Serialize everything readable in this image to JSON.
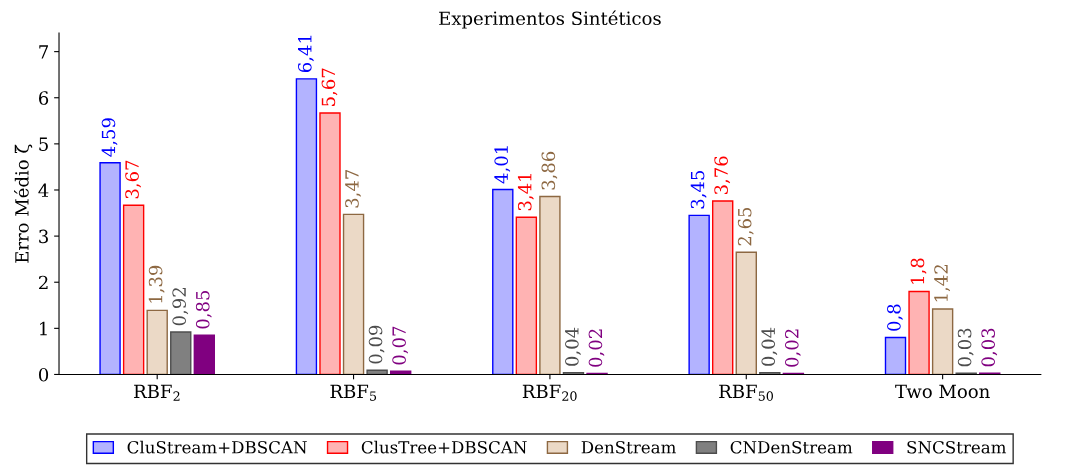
{
  "chart_data": {
    "type": "bar",
    "title": "Experimentos Sintéticos",
    "ylabel": "Erro Médio ζ̄",
    "categories": [
      "RBF$_{2}$",
      "RBF$_{5}$",
      "RBF$_{20}$",
      "RBF$_{50}$",
      "Two Moon"
    ],
    "series": [
      {
        "name": "CluStream+DBSCAN",
        "color": "#b3b3ff",
        "values": [
          4.59,
          6.41,
          4.01,
          3.45,
          0.8
        ],
        "value_labels": [
          "4,59",
          "6,41",
          "4,01",
          "3,45",
          "0,8"
        ]
      },
      {
        "name": "ClusTree+DBSCAN",
        "color": "#ffb3b3",
        "values": [
          3.67,
          5.67,
          3.41,
          3.76,
          1.8
        ],
        "value_labels": [
          "3,67",
          "5,67",
          "3,41",
          "3,76",
          "1,8"
        ]
      },
      {
        "name": "DenStream",
        "color": "#ebd9c6",
        "values": [
          1.39,
          3.47,
          3.86,
          2.65,
          1.42
        ],
        "value_labels": [
          "1,39",
          "3,47",
          "3,86",
          "2,65",
          "1,42"
        ]
      },
      {
        "name": "CNDenStream",
        "color": "#808080",
        "values": [
          0.92,
          0.09,
          0.04,
          0.04,
          0.03
        ],
        "value_labels": [
          "0,92",
          "0,09",
          "0,04",
          "0,04",
          "0,03"
        ]
      },
      {
        "name": "SNCStream",
        "color": "#800080",
        "values": [
          0.85,
          0.07,
          0.02,
          0.02,
          0.03
        ],
        "value_labels": [
          "0,85",
          "0,07",
          "0,02",
          "0,02",
          "0,03"
        ]
      }
    ],
    "ylim": [
      0,
      7.4
    ],
    "yticks": [
      0,
      1,
      2,
      3,
      4,
      5,
      6,
      7
    ],
    "grid": false,
    "legend": "bottom"
  }
}
